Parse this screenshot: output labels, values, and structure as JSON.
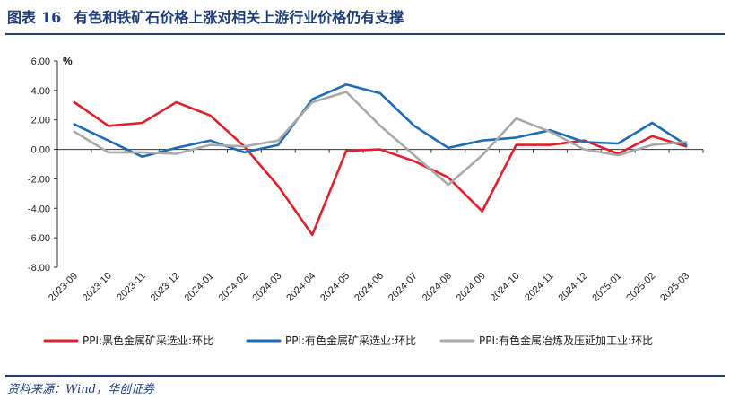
{
  "figure": {
    "label": "图表",
    "number": "16",
    "title": "有色和铁矿石价格上涨对相关上游行业价格仍有支撑",
    "source": "资料来源：Wind，华创证券"
  },
  "chart_data": {
    "type": "line",
    "unit_label": "%",
    "categories": [
      "2023-09",
      "2023-10",
      "2023-11",
      "2023-12",
      "2024-01",
      "2024-02",
      "2024-03",
      "2024-04",
      "2024-05",
      "2024-06",
      "2024-07",
      "2024-08",
      "2024-09",
      "2024-10",
      "2024-11",
      "2024-12",
      "2025-01",
      "2025-02",
      "2025-03"
    ],
    "ylim": [
      -8,
      6
    ],
    "yticks": [
      "6.00",
      "4.00",
      "2.00",
      "0.00",
      "-2.00",
      "-4.00",
      "-6.00",
      "-8.00"
    ],
    "grid": false,
    "legend_position": "bottom",
    "series": [
      {
        "name": "PPI:黑色金属矿采选业:环比",
        "color": "#e0202a",
        "values": [
          3.2,
          1.6,
          1.8,
          3.2,
          2.3,
          0.2,
          -2.5,
          -5.8,
          -0.1,
          0.0,
          -0.8,
          -1.9,
          -4.2,
          0.3,
          0.3,
          0.6,
          -0.3,
          0.9,
          0.2
        ]
      },
      {
        "name": "PPI:有色金属矿采选业:环比",
        "color": "#1e6bb8",
        "values": [
          1.7,
          0.6,
          -0.5,
          0.1,
          0.6,
          -0.2,
          0.3,
          3.4,
          4.4,
          3.8,
          1.6,
          0.1,
          0.6,
          0.8,
          1.3,
          0.5,
          0.4,
          1.8,
          0.3
        ]
      },
      {
        "name": "PPI:有色金属冶炼及压延加工业:环比",
        "color": "#a9a9a9",
        "values": [
          1.2,
          -0.2,
          -0.2,
          -0.3,
          0.3,
          0.2,
          0.6,
          3.2,
          3.9,
          1.6,
          -0.4,
          -2.4,
          -0.4,
          2.1,
          1.2,
          0.0,
          -0.4,
          0.3,
          0.5
        ]
      }
    ]
  }
}
